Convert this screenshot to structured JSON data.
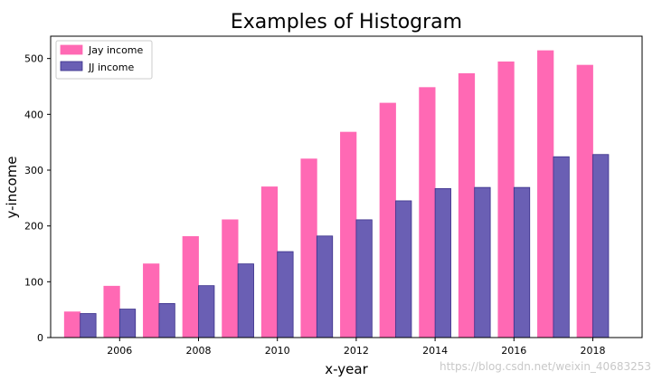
{
  "chart_data": {
    "type": "bar",
    "title": "Examples of Histogram",
    "xlabel": "x-year",
    "ylabel": "y-income",
    "x": [
      2005,
      2006,
      2007,
      2008,
      2009,
      2010,
      2011,
      2012,
      2013,
      2014,
      2015,
      2016,
      2017,
      2018
    ],
    "xticks": [
      2006,
      2008,
      2010,
      2012,
      2014,
      2016,
      2018
    ],
    "yticks": [
      0,
      100,
      200,
      300,
      400,
      500
    ],
    "ylim": [
      0,
      540
    ],
    "xlim": [
      2004.25,
      2019.25
    ],
    "grid": false,
    "legend_position": "top-left",
    "series": [
      {
        "name": "Jay income",
        "color": "#ff69b4",
        "edge_color": "#ff69b4",
        "values": [
          46,
          92,
          132,
          181,
          211,
          270,
          320,
          368,
          420,
          448,
          473,
          494,
          514,
          488
        ]
      },
      {
        "name": "JJ income",
        "color": "#6a5fb4",
        "edge_color": "#3a2f8a",
        "values": [
          43,
          51,
          61,
          93,
          132,
          154,
          182,
          211,
          245,
          267,
          269,
          269,
          324,
          328
        ]
      }
    ]
  },
  "watermark": "https://blog.csdn.net/weixin_40683253"
}
